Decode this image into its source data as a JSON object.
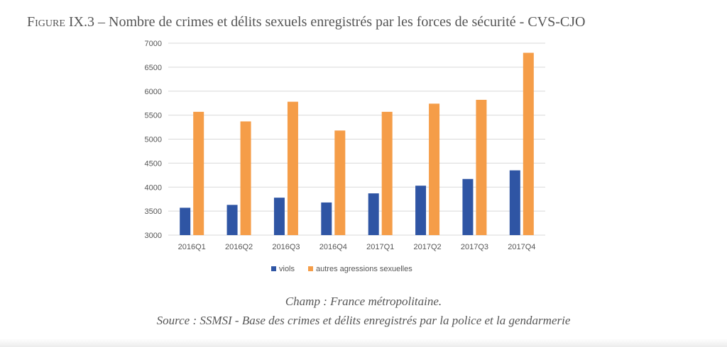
{
  "figure": {
    "label": "Figure IX.3",
    "title": "– Nombre de crimes et délits sexuels enregistrés par les forces de sécurité - CVS-CJO"
  },
  "caption": {
    "champ": "Champ : France métropolitaine.",
    "source": "Source : SSMSI - Base des crimes et délits enregistrés par la police et la gendarmerie"
  },
  "colors": {
    "viols": "#2f55a4",
    "autres": "#f59d48",
    "grid": "#d9d9d9",
    "text": "#555555"
  },
  "chart_data": {
    "type": "bar",
    "categories": [
      "2016Q1",
      "2016Q2",
      "2016Q3",
      "2016Q4",
      "2017Q1",
      "2017Q2",
      "2017Q3",
      "2017Q4"
    ],
    "series": [
      {
        "name": "viols",
        "values": [
          3570,
          3630,
          3780,
          3680,
          3870,
          4030,
          4170,
          4350
        ]
      },
      {
        "name": "autres agressions sexuelles",
        "values": [
          5570,
          5370,
          5780,
          5180,
          5570,
          5740,
          5820,
          6800
        ]
      }
    ],
    "ylim": [
      3000,
      7000
    ],
    "yticks": [
      3000,
      3500,
      4000,
      4500,
      5000,
      5500,
      6000,
      6500,
      7000
    ],
    "grid": true,
    "legend": "bottom"
  }
}
